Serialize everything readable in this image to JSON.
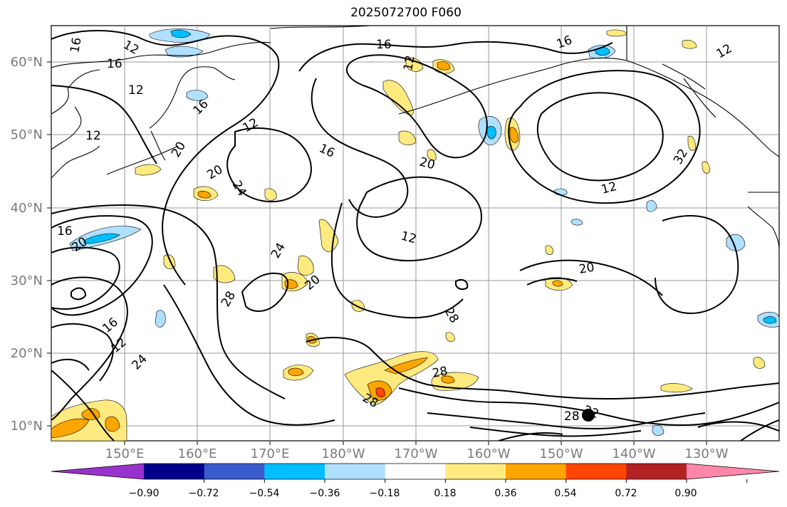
{
  "title": "2025072700 F060",
  "lat_labels": [
    "60°N",
    "50°N",
    "40°N",
    "30°N",
    "20°N",
    "10°N"
  ],
  "lon_labels": [
    "150°E",
    "160°E",
    "170°E",
    "180°W",
    "170°W",
    "160°W",
    "150°W",
    "140°W",
    "130°W"
  ],
  "contour_labels": [
    "16",
    "12",
    "16",
    "12",
    "12",
    "16",
    "16",
    "12",
    "16",
    "12",
    "20",
    "12",
    "16",
    "20",
    "20",
    "24",
    "12",
    "20",
    "12",
    "16",
    "24",
    "20",
    "20",
    "32",
    "28",
    "28",
    "16",
    "12",
    "24",
    "28",
    "28",
    "22",
    "28"
  ],
  "colorbar": {
    "ticks": [
      "−0.90",
      "−0.72",
      "−0.54",
      "−0.36",
      "−0.18",
      "0.18",
      "0.36",
      "0.54",
      "0.72",
      "0.90"
    ],
    "colors": [
      "#9932cc",
      "#00008b",
      "#3a5bcc",
      "#00bfff",
      "#b0e0ff",
      "#ffffff",
      "#ffea80",
      "#ffa500",
      "#ff4500",
      "#b22222",
      "#ff88aa"
    ]
  }
}
